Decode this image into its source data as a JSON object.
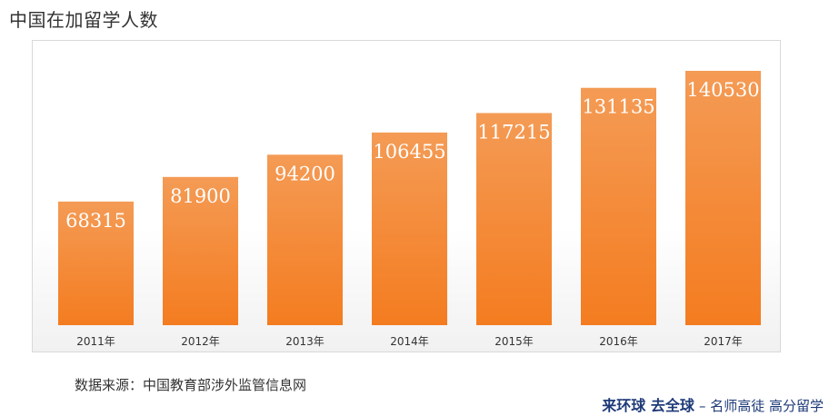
{
  "page_title": "中国在加留学人数",
  "source_text": "数据来源：中国教育部涉外监管信息网",
  "brand": {
    "main": "来环球 去全球",
    "sub": "– 名师高徒 高分留学"
  },
  "colors": {
    "bar_top": "#f49b55",
    "bar_bottom": "#f47c20",
    "label": "#ffffff",
    "brand": "#1e3a78"
  },
  "chart_data": {
    "type": "bar",
    "title": "中国在加留学人数",
    "categories": [
      "2011年",
      "2012年",
      "2013年",
      "2014年",
      "2015年",
      "2016年",
      "2017年"
    ],
    "values": [
      68315,
      81900,
      94200,
      106455,
      117215,
      131135,
      140530
    ],
    "data_labels": [
      "68315",
      "81900",
      "94200",
      "106455",
      "117215",
      "131135",
      "140530"
    ],
    "xlabel": "",
    "ylabel": "",
    "ylim": [
      0,
      140530
    ],
    "grid": false,
    "legend": "none"
  }
}
